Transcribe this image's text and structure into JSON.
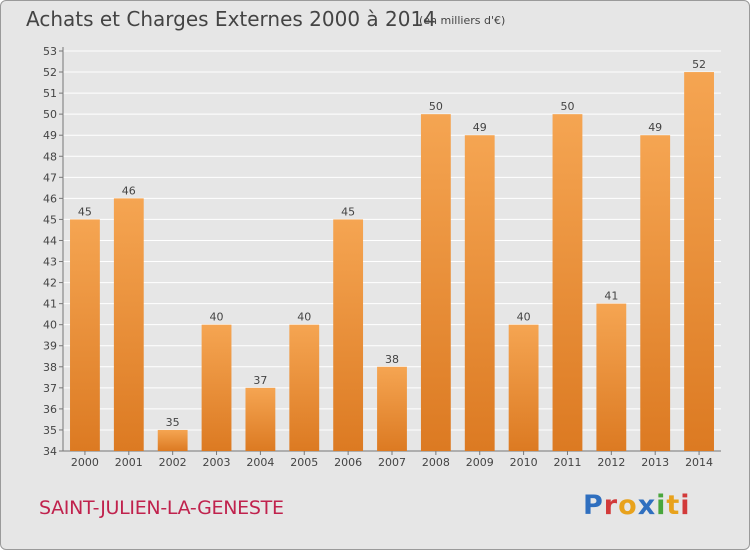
{
  "header": {
    "title": "Achats et Charges Externes 2000 à 2014",
    "subtitle": "(en milliers d'€)"
  },
  "footer": {
    "commune": "SAINT-JULIEN-LA-GENESTE",
    "brand": "Proxiti"
  },
  "colors": {
    "bar_top": "#f5a552",
    "bar_bottom": "#dc7a22",
    "commune_text": "#c0224d",
    "plot_background": "#e6e6e6",
    "grid": "#ffffff",
    "brand_letters": [
      "#2f6fbf",
      "#d23a3a",
      "#e8a21c",
      "#2f6fbf",
      "#4aa63c",
      "#e8a21c",
      "#d23a3a"
    ]
  },
  "chart_data": {
    "type": "bar",
    "title": "Achats et Charges Externes 2000 à 2014",
    "subtitle": "(en milliers d'€)",
    "xlabel": "",
    "ylabel": "",
    "categories": [
      "2000",
      "2001",
      "2002",
      "2003",
      "2004",
      "2005",
      "2006",
      "2007",
      "2008",
      "2009",
      "2010",
      "2011",
      "2012",
      "2013",
      "2014"
    ],
    "values": [
      45,
      46,
      35,
      40,
      37,
      40,
      45,
      38,
      50,
      49,
      40,
      50,
      41,
      49,
      52
    ],
    "ylim": [
      34,
      53
    ],
    "yticks": [
      34,
      35,
      36,
      37,
      38,
      39,
      40,
      41,
      42,
      43,
      44,
      45,
      46,
      47,
      48,
      49,
      50,
      51,
      52,
      53
    ],
    "grid": true,
    "data_labels": true,
    "legend": false
  }
}
